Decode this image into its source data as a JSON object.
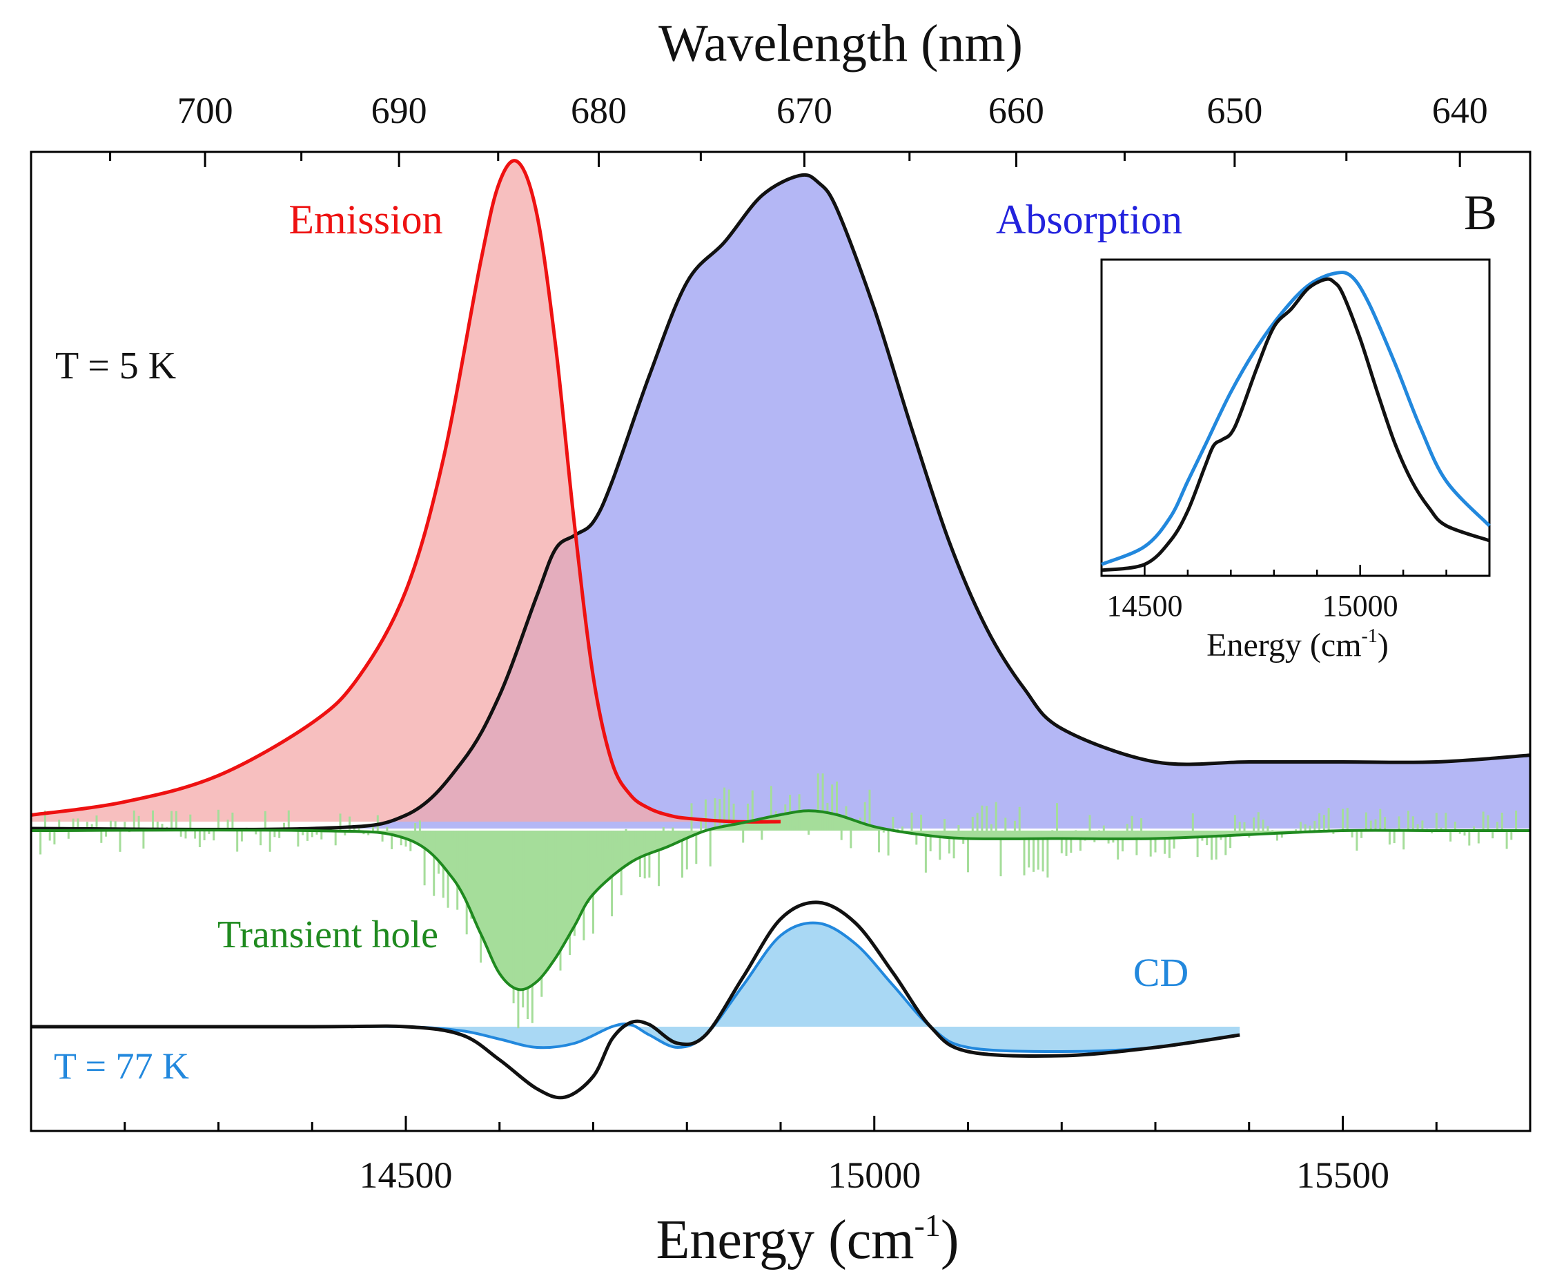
{
  "chart_data": {
    "type": "line",
    "panel_label": "B",
    "x_top": {
      "label": "Wavelength (nm)",
      "ticks": [
        700,
        690,
        680,
        670,
        660,
        650,
        640
      ]
    },
    "x_bottom": {
      "label_main": "Energy (cm",
      "label_sup": "-1",
      "label_close": ")",
      "ticks": [
        14500,
        15000,
        15500
      ],
      "range": [
        14100,
        15700
      ]
    },
    "annotations": {
      "temp_5k": "T = 5 K",
      "temp_77k": "T = 77 K"
    },
    "series": [
      {
        "name": "Emission",
        "color": "#ee1111",
        "fill": "#f4aaaa",
        "x": [
          14100,
          14200,
          14300,
          14400,
          14450,
          14500,
          14540,
          14580,
          14600,
          14620,
          14640,
          14660,
          14680,
          14700,
          14720,
          14740,
          14760,
          14780,
          14800,
          14850,
          14900
        ],
        "y": [
          0.01,
          0.03,
          0.07,
          0.15,
          0.22,
          0.35,
          0.55,
          0.85,
          0.97,
          1.0,
          0.92,
          0.72,
          0.45,
          0.22,
          0.09,
          0.04,
          0.02,
          0.01,
          0.005,
          0.0,
          0.0
        ]
      },
      {
        "name": "Absorption",
        "color": "#111111",
        "fill": "#b4b7f5",
        "x": [
          14100,
          14400,
          14500,
          14560,
          14600,
          14640,
          14660,
          14680,
          14700,
          14720,
          14760,
          14800,
          14840,
          14880,
          14920,
          14940,
          14960,
          15000,
          15040,
          15080,
          15120,
          15160,
          15200,
          15300,
          15400,
          15500,
          15600,
          15700
        ],
        "y": [
          0.0,
          0.0,
          0.02,
          0.1,
          0.2,
          0.35,
          0.42,
          0.44,
          0.46,
          0.52,
          0.68,
          0.82,
          0.88,
          0.95,
          0.98,
          0.97,
          0.93,
          0.78,
          0.6,
          0.43,
          0.3,
          0.21,
          0.15,
          0.1,
          0.1,
          0.1,
          0.1,
          0.11
        ]
      },
      {
        "name": "Transient hole",
        "color": "#1f8a1f",
        "fill": "#a5dd9a",
        "x": [
          14100,
          14400,
          14500,
          14550,
          14580,
          14600,
          14620,
          14640,
          14660,
          14680,
          14700,
          14740,
          14780,
          14820,
          14860,
          14900,
          14930,
          14960,
          15000,
          15050,
          15100,
          15200,
          15300,
          15400,
          15500,
          15600,
          15700
        ],
        "y": [
          0.0,
          0.0,
          -0.01,
          -0.06,
          -0.13,
          -0.18,
          -0.2,
          -0.19,
          -0.16,
          -0.12,
          -0.08,
          -0.04,
          -0.02,
          0.0,
          0.01,
          0.02,
          0.025,
          0.02,
          0.005,
          -0.005,
          -0.01,
          -0.01,
          -0.01,
          -0.005,
          0.0,
          0.0,
          0.0
        ]
      },
      {
        "name": "CD",
        "color": "#2288dd",
        "fill": "#a9d8f4",
        "x": [
          14100,
          14400,
          14500,
          14560,
          14600,
          14640,
          14680,
          14720,
          14740,
          14760,
          14790,
          14820,
          14860,
          14900,
          14940,
          14980,
          15020,
          15060,
          15100,
          15200,
          15300,
          15390
        ],
        "y": [
          0.0,
          0.0,
          0.0,
          -0.01,
          -0.03,
          -0.05,
          -0.04,
          0.0,
          0.005,
          -0.02,
          -0.05,
          -0.02,
          0.1,
          0.22,
          0.25,
          0.2,
          0.1,
          0.0,
          -0.05,
          -0.06,
          -0.05,
          -0.02
        ]
      },
      {
        "name": "CD (77 K, black)",
        "color": "#111111",
        "x": [
          14100,
          14400,
          14500,
          14560,
          14600,
          14640,
          14670,
          14700,
          14720,
          14740,
          14760,
          14790,
          14820,
          14860,
          14900,
          14940,
          14980,
          15020,
          15060,
          15100,
          15200,
          15300,
          15390
        ],
        "y": [
          0.0,
          0.0,
          0.0,
          -0.02,
          -0.08,
          -0.15,
          -0.17,
          -0.12,
          -0.03,
          0.01,
          0.005,
          -0.04,
          -0.02,
          0.12,
          0.26,
          0.3,
          0.25,
          0.13,
          0.0,
          -0.06,
          -0.07,
          -0.05,
          -0.02
        ]
      }
    ],
    "inset": {
      "xlabel_main": "Energy (cm",
      "xlabel_sup": "-1",
      "xlabel_close": ")",
      "ticks": [
        14500,
        15000
      ],
      "range": [
        14400,
        15300
      ],
      "series": [
        {
          "name": "inset-black",
          "color": "#111111",
          "x": [
            14400,
            14500,
            14560,
            14600,
            14640,
            14660,
            14680,
            14700,
            14720,
            14760,
            14800,
            14840,
            14880,
            14920,
            14940,
            14960,
            15000,
            15040,
            15080,
            15120,
            15160,
            15200,
            15300
          ],
          "y": [
            0.0,
            0.02,
            0.1,
            0.2,
            0.35,
            0.42,
            0.44,
            0.46,
            0.52,
            0.68,
            0.82,
            0.88,
            0.95,
            0.98,
            0.97,
            0.93,
            0.78,
            0.6,
            0.43,
            0.3,
            0.21,
            0.15,
            0.1
          ]
        },
        {
          "name": "inset-blue",
          "color": "#2288dd",
          "x": [
            14400,
            14500,
            14560,
            14600,
            14640,
            14700,
            14760,
            14820,
            14880,
            14940,
            14980,
            15020,
            15080,
            15140,
            15200,
            15300
          ],
          "y": [
            0.02,
            0.08,
            0.18,
            0.3,
            0.42,
            0.6,
            0.75,
            0.87,
            0.96,
            1.0,
            0.99,
            0.9,
            0.7,
            0.48,
            0.3,
            0.15
          ]
        }
      ]
    }
  }
}
